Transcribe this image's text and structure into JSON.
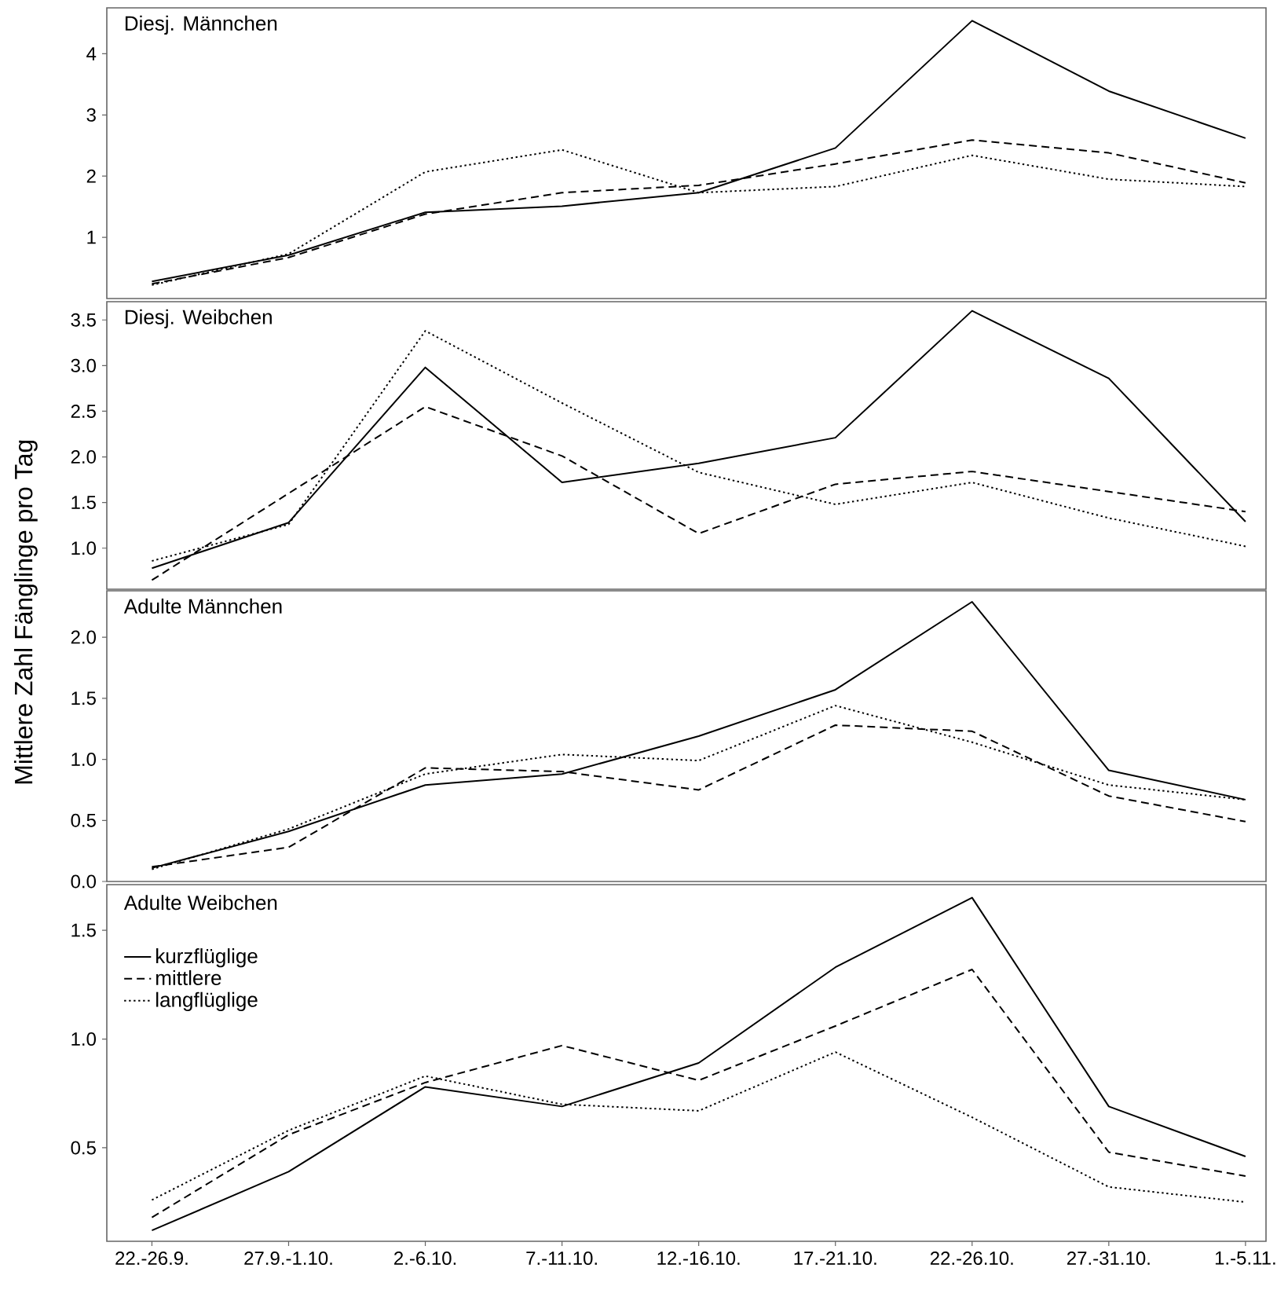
{
  "chart_data": [
    {
      "type": "line",
      "title": "Diesj. Männchen",
      "tick_labels": "y",
      "categories": [
        null,
        null,
        null,
        null,
        null,
        null,
        null,
        null,
        null
      ],
      "ylim": [
        0,
        4.75
      ],
      "yticks": [
        1,
        2,
        3,
        4
      ],
      "series": [
        {
          "color": "#000000",
          "line_style": "solid",
          "values": [
            0.28,
            0.71,
            1.41,
            1.51,
            1.73,
            2.46,
            4.54,
            3.39,
            2.62
          ]
        },
        {
          "color": "#000000",
          "line_style": "dashed",
          "values": [
            0.24,
            0.67,
            1.38,
            1.73,
            1.85,
            2.2,
            2.59,
            2.38,
            1.89
          ]
        },
        {
          "color": "#000000",
          "line_style": "dotted",
          "values": [
            0.22,
            0.73,
            2.07,
            2.43,
            1.73,
            1.83,
            2.34,
            1.95,
            1.83
          ]
        }
      ]
    },
    {
      "type": "line",
      "title": "Diesj. Weibchen",
      "ylabel": "Mittlere Zahl Fänglinge pro Tag",
      "tick_labels": "y",
      "categories": [
        null,
        null,
        null,
        null,
        null,
        null,
        null,
        null,
        null
      ],
      "ylim": [
        0.55,
        3.7
      ],
      "yticks": [
        {
          "value": 1.0,
          "label": "1.0"
        },
        {
          "value": 1.5,
          "label": "1.5"
        },
        {
          "value": 2.0,
          "label": "2.0"
        },
        {
          "value": 2.5,
          "label": "2.5"
        },
        {
          "value": 3.0,
          "label": "3.0"
        },
        {
          "value": 3.5,
          "label": "3.5"
        }
      ],
      "series": [
        {
          "color": "#000000",
          "line_style": "solid",
          "values": [
            0.78,
            1.28,
            2.98,
            1.72,
            1.93,
            2.21,
            3.6,
            2.86,
            1.29
          ]
        },
        {
          "color": "#000000",
          "line_style": "dashed",
          "values": [
            0.65,
            1.6,
            2.55,
            2.01,
            1.16,
            1.7,
            1.84,
            1.62,
            1.4
          ]
        },
        {
          "color": "#000000",
          "line_style": "dotted",
          "values": [
            0.86,
            1.26,
            3.38,
            2.59,
            1.83,
            1.48,
            1.72,
            1.33,
            1.02
          ]
        }
      ]
    },
    {
      "type": "line",
      "title": "Adulte Männchen",
      "tick_labels": "y",
      "categories": [
        null,
        null,
        null,
        null,
        null,
        null,
        null,
        null,
        null
      ],
      "ylim": [
        0,
        2.38
      ],
      "yticks": [
        {
          "value": 0,
          "label": "0.0"
        },
        {
          "value": 0.5,
          "label": "0.5"
        },
        {
          "value": 1.0,
          "label": "1.0"
        },
        {
          "value": 1.5,
          "label": "1.5"
        },
        {
          "value": 2.0,
          "label": "2.0"
        }
      ],
      "series": [
        {
          "color": "#000000",
          "line_style": "solid",
          "values": [
            0.11,
            0.41,
            0.79,
            0.88,
            1.19,
            1.57,
            2.29,
            0.91,
            0.67
          ]
        },
        {
          "color": "#000000",
          "line_style": "dashed",
          "values": [
            0.12,
            0.28,
            0.93,
            0.9,
            0.75,
            1.28,
            1.23,
            0.7,
            0.49
          ]
        },
        {
          "color": "#000000",
          "line_style": "dotted",
          "values": [
            0.1,
            0.43,
            0.88,
            1.04,
            0.99,
            1.44,
            1.14,
            0.79,
            0.67
          ]
        }
      ]
    },
    {
      "type": "line",
      "title": "Adulte Weibchen",
      "legend": "top left",
      "categories": [
        "22.-26.9.",
        "27.9.-1.10.",
        "2.-6.10.",
        "7.-11.10.",
        "12.-16.10.",
        "17.-21.10.",
        "22.-26.10.",
        "27.-31.10.",
        "1.-5.11."
      ],
      "ylim": [
        0.07,
        1.71
      ],
      "yticks": [
        {
          "value": 0.5,
          "label": "0.5"
        },
        {
          "value": 1.0,
          "label": "1.0"
        },
        {
          "value": 1.5,
          "label": "1.5"
        }
      ],
      "series": [
        {
          "name": "kurzflüglige",
          "color": "#000000",
          "line_style": "solid",
          "values": [
            0.12,
            0.39,
            0.78,
            0.69,
            0.89,
            1.33,
            1.65,
            0.69,
            0.46
          ]
        },
        {
          "name": "mittlere",
          "color": "#000000",
          "line_style": "dashed",
          "values": [
            0.18,
            0.56,
            0.8,
            0.97,
            0.81,
            1.06,
            1.32,
            0.48,
            0.37
          ]
        },
        {
          "name": "langflüglige",
          "color": "#000000",
          "line_style": "dotted",
          "values": [
            0.26,
            0.58,
            0.83,
            0.7,
            0.67,
            0.94,
            0.64,
            0.32,
            0.25
          ]
        }
      ]
    }
  ]
}
